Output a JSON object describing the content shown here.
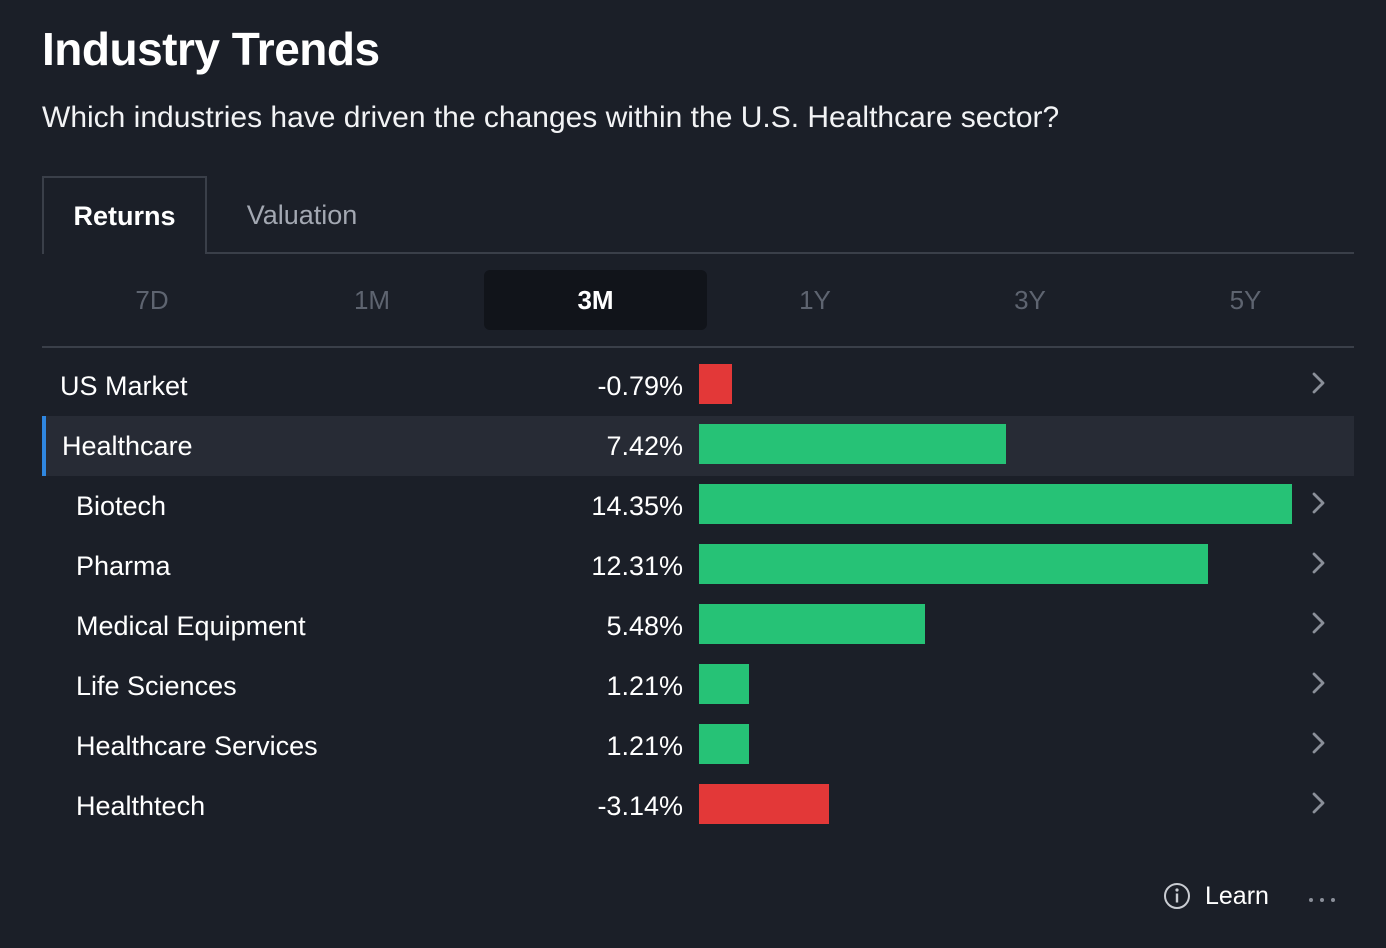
{
  "header": {
    "title": "Industry Trends",
    "subtitle": "Which industries have driven the changes within the U.S. Healthcare sector?"
  },
  "tabs": [
    {
      "label": "Returns",
      "active": true
    },
    {
      "label": "Valuation",
      "active": false
    }
  ],
  "periods": [
    {
      "label": "7D",
      "selected": false
    },
    {
      "label": "1M",
      "selected": false
    },
    {
      "label": "3M",
      "selected": true
    },
    {
      "label": "1Y",
      "selected": false
    },
    {
      "label": "3Y",
      "selected": false
    },
    {
      "label": "5Y",
      "selected": false
    }
  ],
  "chart_data": {
    "type": "bar",
    "categories": [
      "US Market",
      "Healthcare",
      "Biotech",
      "Pharma",
      "Medical Equipment",
      "Life Sciences",
      "Healthcare Services",
      "Healthtech"
    ],
    "values": [
      -0.79,
      7.42,
      14.35,
      12.31,
      5.48,
      1.21,
      1.21,
      -3.14
    ],
    "value_labels": [
      "-0.79%",
      "7.42%",
      "14.35%",
      "12.31%",
      "5.48%",
      "1.21%",
      "1.21%",
      "-3.14%"
    ],
    "highlighted": "Healthcare",
    "positive_color": "#26c276",
    "negative_color": "#e33838"
  },
  "footer": {
    "learn_label": "Learn",
    "info_icon": "info-icon",
    "more_icon": "more-dots-icon"
  },
  "colors": {
    "background": "#1b1f28",
    "highlight_row": "#272b35",
    "accent": "#2f86e0"
  }
}
